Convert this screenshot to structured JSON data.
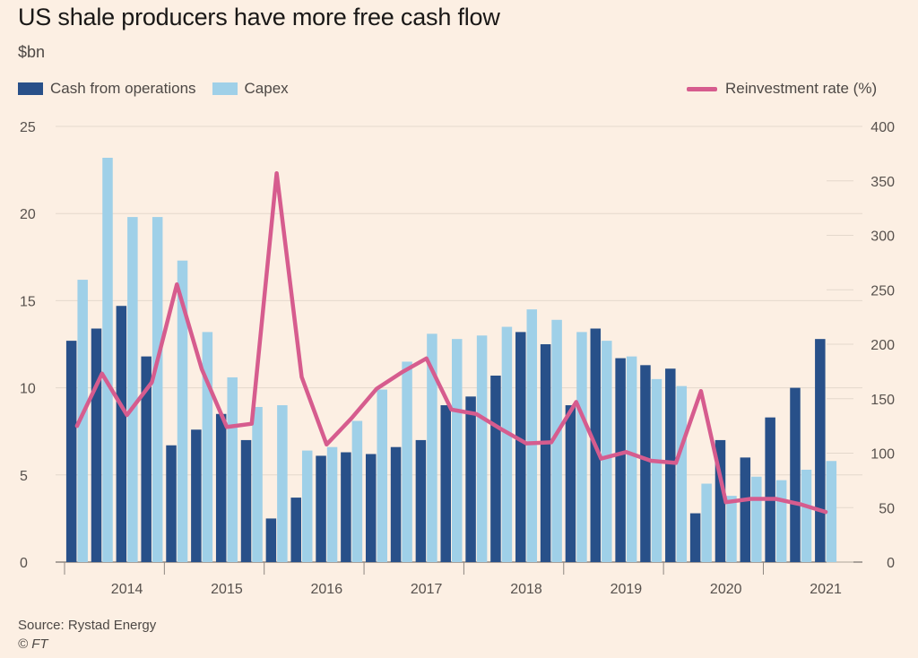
{
  "title": "US shale producers have more free cash flow",
  "units": "$bn",
  "legend": {
    "cfo": "Cash from operations",
    "capex": "Capex",
    "reinvest": "Reinvestment rate (%)"
  },
  "source": "Source: Rystad Energy",
  "credit": "© FT",
  "colors": {
    "background": "#fcefe3",
    "cfo": "#285089",
    "capex": "#9fd0e8",
    "reinvest": "#d65c8e",
    "grid": "#e4d8cc",
    "axis": "#8e8781"
  },
  "chart_data": {
    "type": "bar",
    "quarters": [
      "2013 Q4",
      "2014 Q1",
      "2014 Q2",
      "2014 Q3",
      "2014 Q4",
      "2015 Q1",
      "2015 Q2",
      "2015 Q3",
      "2015 Q4",
      "2016 Q1",
      "2016 Q2",
      "2016 Q3",
      "2016 Q4",
      "2017 Q1",
      "2017 Q2",
      "2017 Q3",
      "2017 Q4",
      "2018 Q1",
      "2018 Q2",
      "2018 Q3",
      "2018 Q4",
      "2019 Q1",
      "2019 Q2",
      "2019 Q3",
      "2019 Q4",
      "2020 Q1",
      "2020 Q2",
      "2020 Q3",
      "2020 Q4",
      "2021 Q1",
      "2021 Q2"
    ],
    "year_labels": [
      "2014",
      "2015",
      "2016",
      "2017",
      "2018",
      "2019",
      "2020",
      "2021"
    ],
    "series": [
      {
        "name": "Cash from operations",
        "axis": "left",
        "values": [
          12.7,
          13.4,
          14.7,
          11.8,
          6.7,
          7.6,
          8.5,
          7.0,
          2.5,
          3.7,
          6.1,
          6.3,
          6.2,
          6.6,
          7.0,
          9.0,
          9.5,
          10.7,
          13.2,
          12.5,
          9.0,
          13.4,
          11.7,
          11.3,
          11.1,
          2.8,
          7.0,
          6.0,
          8.3,
          10.0,
          12.8
        ]
      },
      {
        "name": "Capex",
        "axis": "left",
        "values": [
          16.2,
          23.2,
          19.8,
          19.8,
          17.3,
          13.2,
          10.6,
          8.9,
          9.0,
          6.4,
          6.6,
          8.1,
          9.9,
          11.5,
          13.1,
          12.8,
          13.0,
          13.5,
          14.5,
          13.9,
          13.2,
          12.7,
          11.8,
          10.5,
          10.1,
          4.5,
          3.8,
          4.9,
          4.7,
          5.3,
          5.8
        ]
      },
      {
        "name": "Reinvestment rate (%)",
        "axis": "right",
        "type": "line",
        "values": [
          125,
          173,
          135,
          165,
          255,
          177,
          124,
          127,
          357,
          170,
          108,
          132,
          159,
          174,
          187,
          140,
          136,
          122,
          109,
          110,
          147,
          95,
          101,
          93,
          91,
          157,
          55,
          58,
          58,
          53,
          46
        ]
      }
    ],
    "ylim_left": [
      0,
      25
    ],
    "yticks_left": [
      0,
      5,
      10,
      15,
      20,
      25
    ],
    "ylim_right": [
      0,
      400
    ],
    "yticks_right": [
      0,
      50,
      100,
      150,
      200,
      250,
      300,
      350,
      400
    ],
    "grid": true
  }
}
